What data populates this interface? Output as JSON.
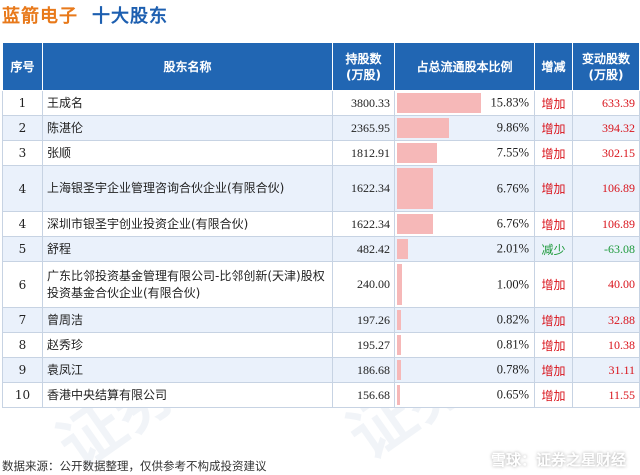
{
  "header": {
    "company": "蓝箭电子",
    "subtitle": "十大股东"
  },
  "table": {
    "columns": {
      "rank": "序号",
      "name": "股东名称",
      "shares": "持股数\n(万股)",
      "ratio": "占总流通股本比例",
      "change": "增减",
      "delta": "变动股数\n(万股)"
    },
    "rows": [
      {
        "rank": "1",
        "name": "王成名",
        "shares": "3800.33",
        "ratio": "15.83%",
        "ratio_value": 15.83,
        "change": "增加",
        "direction": "up",
        "delta": "633.39",
        "tall": false
      },
      {
        "rank": "2",
        "name": "陈湛伦",
        "shares": "2365.95",
        "ratio": "9.86%",
        "ratio_value": 9.86,
        "change": "增加",
        "direction": "up",
        "delta": "394.32",
        "tall": false
      },
      {
        "rank": "3",
        "name": "张顺",
        "shares": "1812.91",
        "ratio": "7.55%",
        "ratio_value": 7.55,
        "change": "增加",
        "direction": "up",
        "delta": "302.15",
        "tall": false
      },
      {
        "rank": "4",
        "name": "上海银圣宇企业管理咨询合伙企业(有限合伙)",
        "shares": "1622.34",
        "ratio": "6.76%",
        "ratio_value": 6.76,
        "change": "增加",
        "direction": "up",
        "delta": "106.89",
        "tall": true
      },
      {
        "rank": "4",
        "name": "深圳市银圣宇创业投资企业(有限合伙)",
        "shares": "1622.34",
        "ratio": "6.76%",
        "ratio_value": 6.76,
        "change": "增加",
        "direction": "up",
        "delta": "106.89",
        "tall": false
      },
      {
        "rank": "5",
        "name": "舒程",
        "shares": "482.42",
        "ratio": "2.01%",
        "ratio_value": 2.01,
        "change": "减少",
        "direction": "down",
        "delta": "-63.08",
        "tall": false
      },
      {
        "rank": "6",
        "name": "广东比邻投资基金管理有限公司-比邻创新(天津)股权投资基金合伙企业(有限合伙)",
        "shares": "240.00",
        "ratio": "1.00%",
        "ratio_value": 1.0,
        "change": "增加",
        "direction": "up",
        "delta": "40.00",
        "tall": true
      },
      {
        "rank": "7",
        "name": "曾周洁",
        "shares": "197.26",
        "ratio": "0.82%",
        "ratio_value": 0.82,
        "change": "增加",
        "direction": "up",
        "delta": "32.88",
        "tall": false
      },
      {
        "rank": "8",
        "name": "赵秀珍",
        "shares": "195.27",
        "ratio": "0.81%",
        "ratio_value": 0.81,
        "change": "增加",
        "direction": "up",
        "delta": "10.38",
        "tall": false
      },
      {
        "rank": "9",
        "name": "袁凤江",
        "shares": "186.68",
        "ratio": "0.78%",
        "ratio_value": 0.78,
        "change": "增加",
        "direction": "up",
        "delta": "31.11",
        "tall": false
      },
      {
        "rank": "10",
        "name": "香港中央结算有限公司",
        "shares": "156.68",
        "ratio": "0.65%",
        "ratio_value": 0.65,
        "change": "增加",
        "direction": "up",
        "delta": "11.55",
        "tall": false
      }
    ]
  },
  "footer": {
    "source": "数据来源：公开数据整理，仅供参考不构成投资建议",
    "brand": "雪球：证券之星财经"
  },
  "watermark": "证券之星",
  "colors": {
    "header_bg": "#2166b3",
    "company": "#e8791a",
    "subtitle": "#1d5fb0",
    "bar": "#f6b8b8",
    "increase": "#d9141c",
    "decrease": "#1e9a3c"
  }
}
